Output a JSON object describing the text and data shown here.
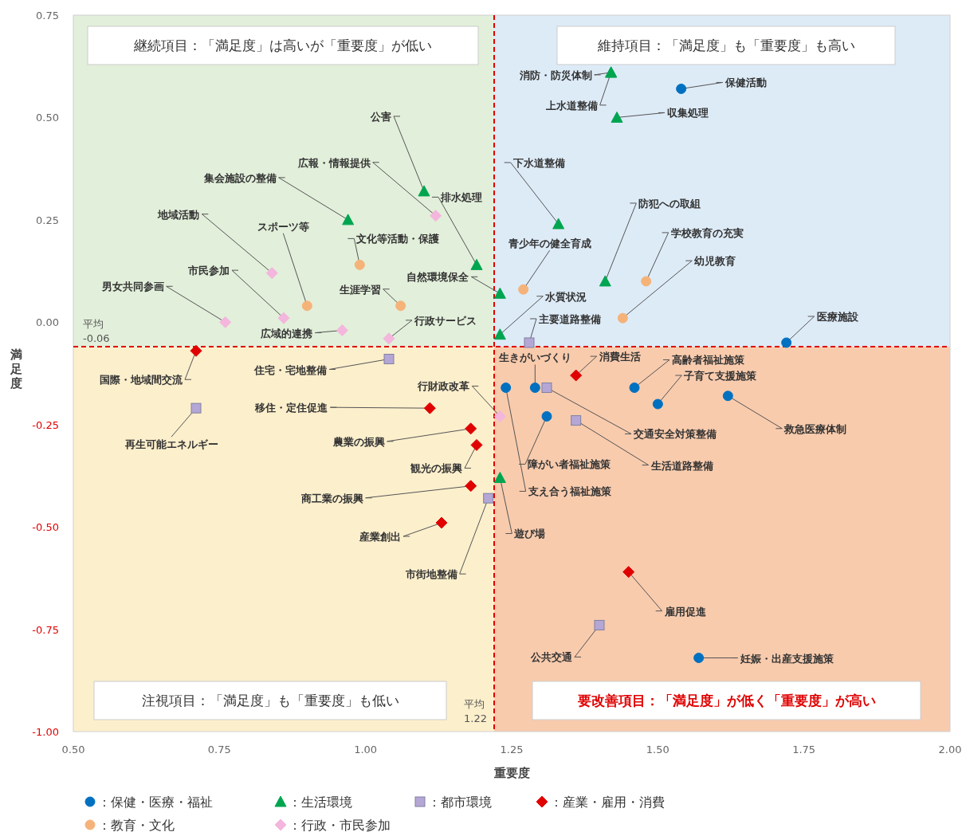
{
  "chart_data": {
    "type": "scatter",
    "xlabel": "重要度",
    "ylabel": "満足度",
    "xlim": [
      0.5,
      2.0
    ],
    "ylim": [
      -1.0,
      0.75
    ],
    "xticks": [
      {
        "value": 0.5,
        "label": "0.50"
      },
      {
        "value": 0.75,
        "label": "0.75"
      },
      {
        "value": 1.0,
        "label": "1.00"
      },
      {
        "value": 1.25,
        "label": "1.25"
      },
      {
        "value": 1.5,
        "label": "1.50"
      },
      {
        "value": 1.75,
        "label": "1.75"
      },
      {
        "value": 2.0,
        "label": "2.00"
      }
    ],
    "yticks": [
      {
        "value": 0.75,
        "label": "0.75"
      },
      {
        "value": 0.5,
        "label": "0.50"
      },
      {
        "value": 0.25,
        "label": "0.25"
      },
      {
        "value": 0.0,
        "label": "0.00"
      },
      {
        "value": -0.25,
        "label": "-0.25"
      },
      {
        "value": -0.5,
        "label": "-0.50"
      },
      {
        "value": -0.75,
        "label": "-0.75"
      },
      {
        "value": -1.0,
        "label": "-1.00"
      }
    ],
    "legend": "bottom",
    "grid": false,
    "ref_lines": [
      {
        "axis": "x",
        "value": 1.22,
        "label": "平均\n1.22",
        "color": "#e00000",
        "line_style": "dashed"
      },
      {
        "axis": "y",
        "value": -0.06,
        "label": "平均\n-0.06",
        "color": "#e00000",
        "line_style": "dashed"
      }
    ],
    "series": [
      {
        "name": "：保健・医療・福祉",
        "color": "#0070c0",
        "marker": "circle",
        "x": [
          1.54,
          1.72,
          1.29,
          1.24,
          1.46,
          1.5,
          1.62,
          1.31,
          1.57
        ],
        "values": [
          0.57,
          -0.05,
          -0.16,
          -0.16,
          -0.16,
          -0.2,
          -0.18,
          -0.23,
          -0.82
        ]
      },
      {
        "name": "：生活環境",
        "color": "#00a550",
        "marker": "triangle",
        "x": [
          1.42,
          1.42,
          1.43,
          1.1,
          0.97,
          1.33,
          1.19,
          1.23,
          1.41,
          1.23,
          1.23
        ],
        "values": [
          0.61,
          0.61,
          0.5,
          0.32,
          0.25,
          0.24,
          0.14,
          0.07,
          0.1,
          -0.03,
          -0.38
        ]
      },
      {
        "name": "：都市環境",
        "color": "#b4a7d6",
        "marker": "square",
        "x": [
          1.28,
          1.04,
          0.71,
          1.31,
          1.36,
          1.21,
          1.4
        ],
        "values": [
          -0.05,
          -0.09,
          -0.21,
          -0.16,
          -0.24,
          -0.43,
          -0.74
        ]
      },
      {
        "name": "：産業・雇用・消費",
        "color": "#e00000",
        "marker": "diamond",
        "x": [
          0.71,
          1.36,
          1.11,
          1.18,
          1.19,
          1.18,
          1.13,
          1.45
        ],
        "values": [
          -0.07,
          -0.13,
          -0.21,
          -0.26,
          -0.3,
          -0.4,
          -0.49,
          -0.61
        ]
      },
      {
        "name": "：教育・文化",
        "color": "#f5b37a",
        "marker": "circle",
        "x": [
          0.99,
          0.9,
          1.06,
          1.27,
          1.48,
          1.44
        ],
        "values": [
          0.14,
          0.04,
          0.04,
          0.08,
          0.1,
          0.01
        ]
      },
      {
        "name": "：行政・市民参加",
        "color": "#f4b6dd",
        "marker": "diamond",
        "x": [
          1.12,
          0.84,
          0.86,
          0.76,
          0.96,
          1.04,
          1.23
        ],
        "values": [
          0.26,
          0.12,
          0.01,
          0.0,
          -0.02,
          -0.04,
          -0.23
        ]
      }
    ],
    "annotations": [
      "継続項目：「満足度」は高いが「重要度」が低い",
      "維持項目：「満足度」も「重要度」も高い",
      "注視項目：「満足度」も「重要度」も低い",
      "要改善項目：「満足度」が低く「重要度」が高い",
      {
        "text": "保健活動",
        "x": 1.54,
        "y": 0.57
      },
      {
        "text": "医療施設",
        "x": 1.72,
        "y": -0.05
      },
      {
        "text": "生きがいづくり",
        "x": 1.29,
        "y": -0.16
      },
      {
        "text": "支え合う福祉施策",
        "x": 1.24,
        "y": -0.16
      },
      {
        "text": "高齢者福祉施策",
        "x": 1.46,
        "y": -0.16
      },
      {
        "text": "子育て支援施策",
        "x": 1.5,
        "y": -0.2
      },
      {
        "text": "救急医療体制",
        "x": 1.62,
        "y": -0.18
      },
      {
        "text": "障がい者福祉施策",
        "x": 1.31,
        "y": -0.23
      },
      {
        "text": "妊娠・出産支援施策",
        "x": 1.57,
        "y": -0.82
      },
      {
        "text": "消防・防災体制",
        "x": 1.42,
        "y": 0.61
      },
      {
        "text": "上水道整備",
        "x": 1.42,
        "y": 0.61
      },
      {
        "text": "収集処理",
        "x": 1.43,
        "y": 0.5
      },
      {
        "text": "公害",
        "x": 1.1,
        "y": 0.32
      },
      {
        "text": "集会施設の整備",
        "x": 0.97,
        "y": 0.25
      },
      {
        "text": "下水道整備",
        "x": 1.33,
        "y": 0.24
      },
      {
        "text": "排水処理",
        "x": 1.19,
        "y": 0.14
      },
      {
        "text": "自然環境保全",
        "x": 1.23,
        "y": 0.07
      },
      {
        "text": "防犯への取組",
        "x": 1.41,
        "y": 0.1
      },
      {
        "text": "水質状況",
        "x": 1.23,
        "y": -0.03
      },
      {
        "text": "遊び場",
        "x": 1.23,
        "y": -0.38
      },
      {
        "text": "主要道路整備",
        "x": 1.28,
        "y": -0.05
      },
      {
        "text": "住宅・宅地整備",
        "x": 1.04,
        "y": -0.09
      },
      {
        "text": "再生可能エネルギー",
        "x": 0.71,
        "y": -0.21
      },
      {
        "text": "交通安全対策整備",
        "x": 1.31,
        "y": -0.16
      },
      {
        "text": "生活道路整備",
        "x": 1.36,
        "y": -0.24
      },
      {
        "text": "市街地整備",
        "x": 1.21,
        "y": -0.43
      },
      {
        "text": "公共交通",
        "x": 1.4,
        "y": -0.74
      },
      {
        "text": "国際・地域間交流",
        "x": 0.71,
        "y": -0.07
      },
      {
        "text": "消費生活",
        "x": 1.36,
        "y": -0.13
      },
      {
        "text": "移住・定住促進",
        "x": 1.11,
        "y": -0.21
      },
      {
        "text": "農業の振興",
        "x": 1.18,
        "y": -0.26
      },
      {
        "text": "観光の振興",
        "x": 1.19,
        "y": -0.3
      },
      {
        "text": "商工業の振興",
        "x": 1.18,
        "y": -0.4
      },
      {
        "text": "産業創出",
        "x": 1.13,
        "y": -0.49
      },
      {
        "text": "雇用促進",
        "x": 1.45,
        "y": -0.61
      },
      {
        "text": "文化等活動・保護",
        "x": 0.99,
        "y": 0.14
      },
      {
        "text": "スポーツ等",
        "x": 0.9,
        "y": 0.04
      },
      {
        "text": "生涯学習",
        "x": 1.06,
        "y": 0.04
      },
      {
        "text": "青少年の健全育成",
        "x": 1.27,
        "y": 0.08
      },
      {
        "text": "学校教育の充実",
        "x": 1.48,
        "y": 0.1
      },
      {
        "text": "幼児教育",
        "x": 1.44,
        "y": 0.01
      },
      {
        "text": "広報・情報提供",
        "x": 1.12,
        "y": 0.26
      },
      {
        "text": "地域活動",
        "x": 0.84,
        "y": 0.12
      },
      {
        "text": "市民参加",
        "x": 0.86,
        "y": 0.01
      },
      {
        "text": "男女共同参画",
        "x": 0.76,
        "y": 0.0
      },
      {
        "text": "広域的連携",
        "x": 0.96,
        "y": -0.02
      },
      {
        "text": "行政サービス",
        "x": 1.04,
        "y": -0.04
      },
      {
        "text": "行財政改革",
        "x": 1.23,
        "y": -0.23
      }
    ]
  }
}
